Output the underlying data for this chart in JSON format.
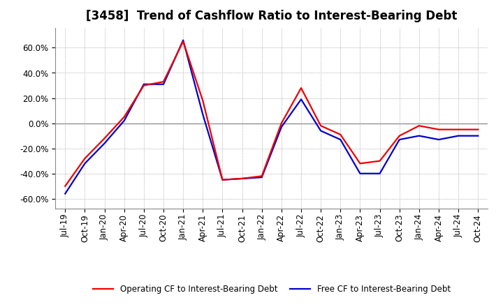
{
  "title": "[3458]  Trend of Cashflow Ratio to Interest-Bearing Debt",
  "x_labels": [
    "Jul-19",
    "Oct-19",
    "Jan-20",
    "Apr-20",
    "Jul-20",
    "Oct-20",
    "Jan-21",
    "Apr-21",
    "Jul-21",
    "Oct-21",
    "Jan-22",
    "Apr-22",
    "Jul-22",
    "Oct-22",
    "Jan-23",
    "Apr-23",
    "Jul-23",
    "Oct-23",
    "Jan-24",
    "Apr-24",
    "Jul-24",
    "Oct-24"
  ],
  "operating_cf": [
    -0.5,
    -0.28,
    -0.12,
    0.05,
    0.3,
    0.33,
    0.65,
    0.18,
    -0.45,
    -0.44,
    -0.42,
    0.0,
    0.28,
    -0.02,
    -0.09,
    -0.32,
    -0.3,
    -0.1,
    -0.02,
    -0.05,
    -0.05,
    -0.05
  ],
  "free_cf": [
    -0.56,
    -0.32,
    -0.16,
    0.02,
    0.31,
    0.31,
    0.66,
    0.07,
    -0.45,
    -0.44,
    -0.43,
    -0.03,
    0.19,
    -0.06,
    -0.13,
    -0.4,
    -0.4,
    -0.13,
    -0.1,
    -0.13,
    -0.1,
    -0.1
  ],
  "ylim": [
    -0.68,
    0.76
  ],
  "yticks": [
    -0.6,
    -0.4,
    -0.2,
    0.0,
    0.2,
    0.4,
    0.6
  ],
  "operating_color": "#EE0000",
  "free_color": "#0000CC",
  "background_color": "#FFFFFF",
  "plot_background": "#FFFFFF",
  "grid_color": "#999999",
  "legend_operating": "Operating CF to Interest-Bearing Debt",
  "legend_free": "Free CF to Interest-Bearing Debt",
  "title_fontsize": 12,
  "tick_fontsize": 8.5
}
